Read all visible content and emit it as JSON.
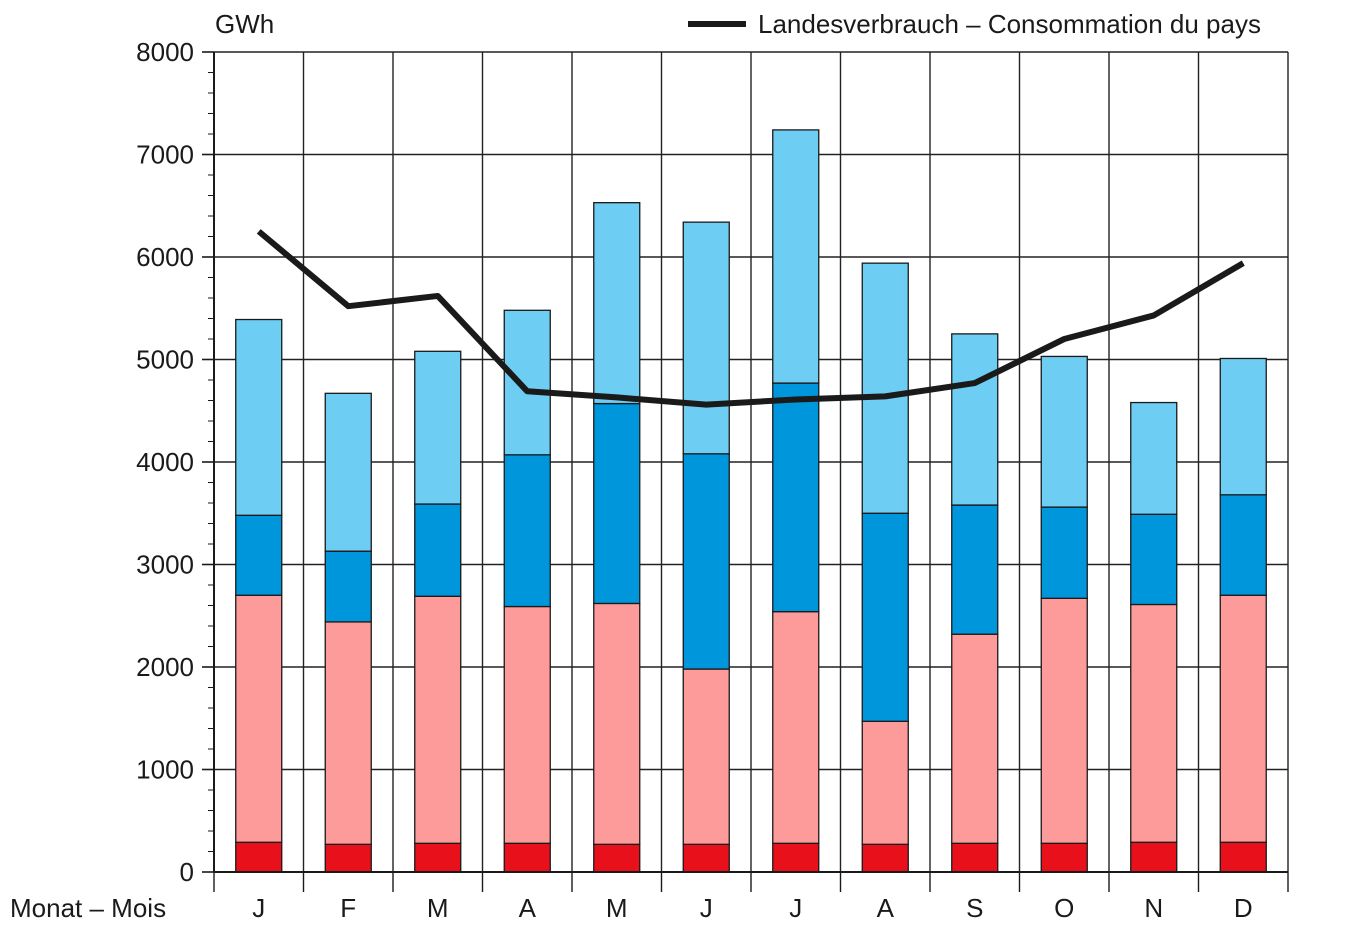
{
  "chart_data": {
    "type": "bar",
    "subtype": "stacked-bar-with-line",
    "unit_label": "GWh",
    "xlabel": "Monat – Mois",
    "categories": [
      "J",
      "F",
      "M",
      "A",
      "M",
      "J",
      "J",
      "A",
      "S",
      "O",
      "N",
      "D"
    ],
    "ylim": [
      0,
      8000
    ],
    "yticks": [
      0,
      1000,
      2000,
      3000,
      4000,
      5000,
      6000,
      7000,
      8000
    ],
    "grid": true,
    "series": [
      {
        "color": "#e8101a",
        "values": [
          290,
          270,
          280,
          280,
          270,
          270,
          280,
          270,
          280,
          280,
          290,
          290
        ]
      },
      {
        "color": "#fd9a9a",
        "values": [
          2410,
          2170,
          2410,
          2310,
          2350,
          1710,
          2260,
          1200,
          2040,
          2390,
          2320,
          2410
        ]
      },
      {
        "color": "#0096dc",
        "values": [
          780,
          690,
          900,
          1480,
          1950,
          2100,
          2230,
          2030,
          1260,
          890,
          880,
          980
        ]
      },
      {
        "color": "#6dcdf3",
        "values": [
          1910,
          1540,
          1490,
          1410,
          1960,
          2260,
          2470,
          2440,
          1670,
          1470,
          1090,
          1330
        ]
      }
    ],
    "line": {
      "name": "Landesverbrauch – Consommation du pays",
      "color": "#1a1a1a",
      "values": [
        6250,
        5520,
        5620,
        4690,
        4630,
        4560,
        4610,
        4640,
        4770,
        5200,
        5430,
        5940
      ]
    },
    "legend": "top-right"
  }
}
